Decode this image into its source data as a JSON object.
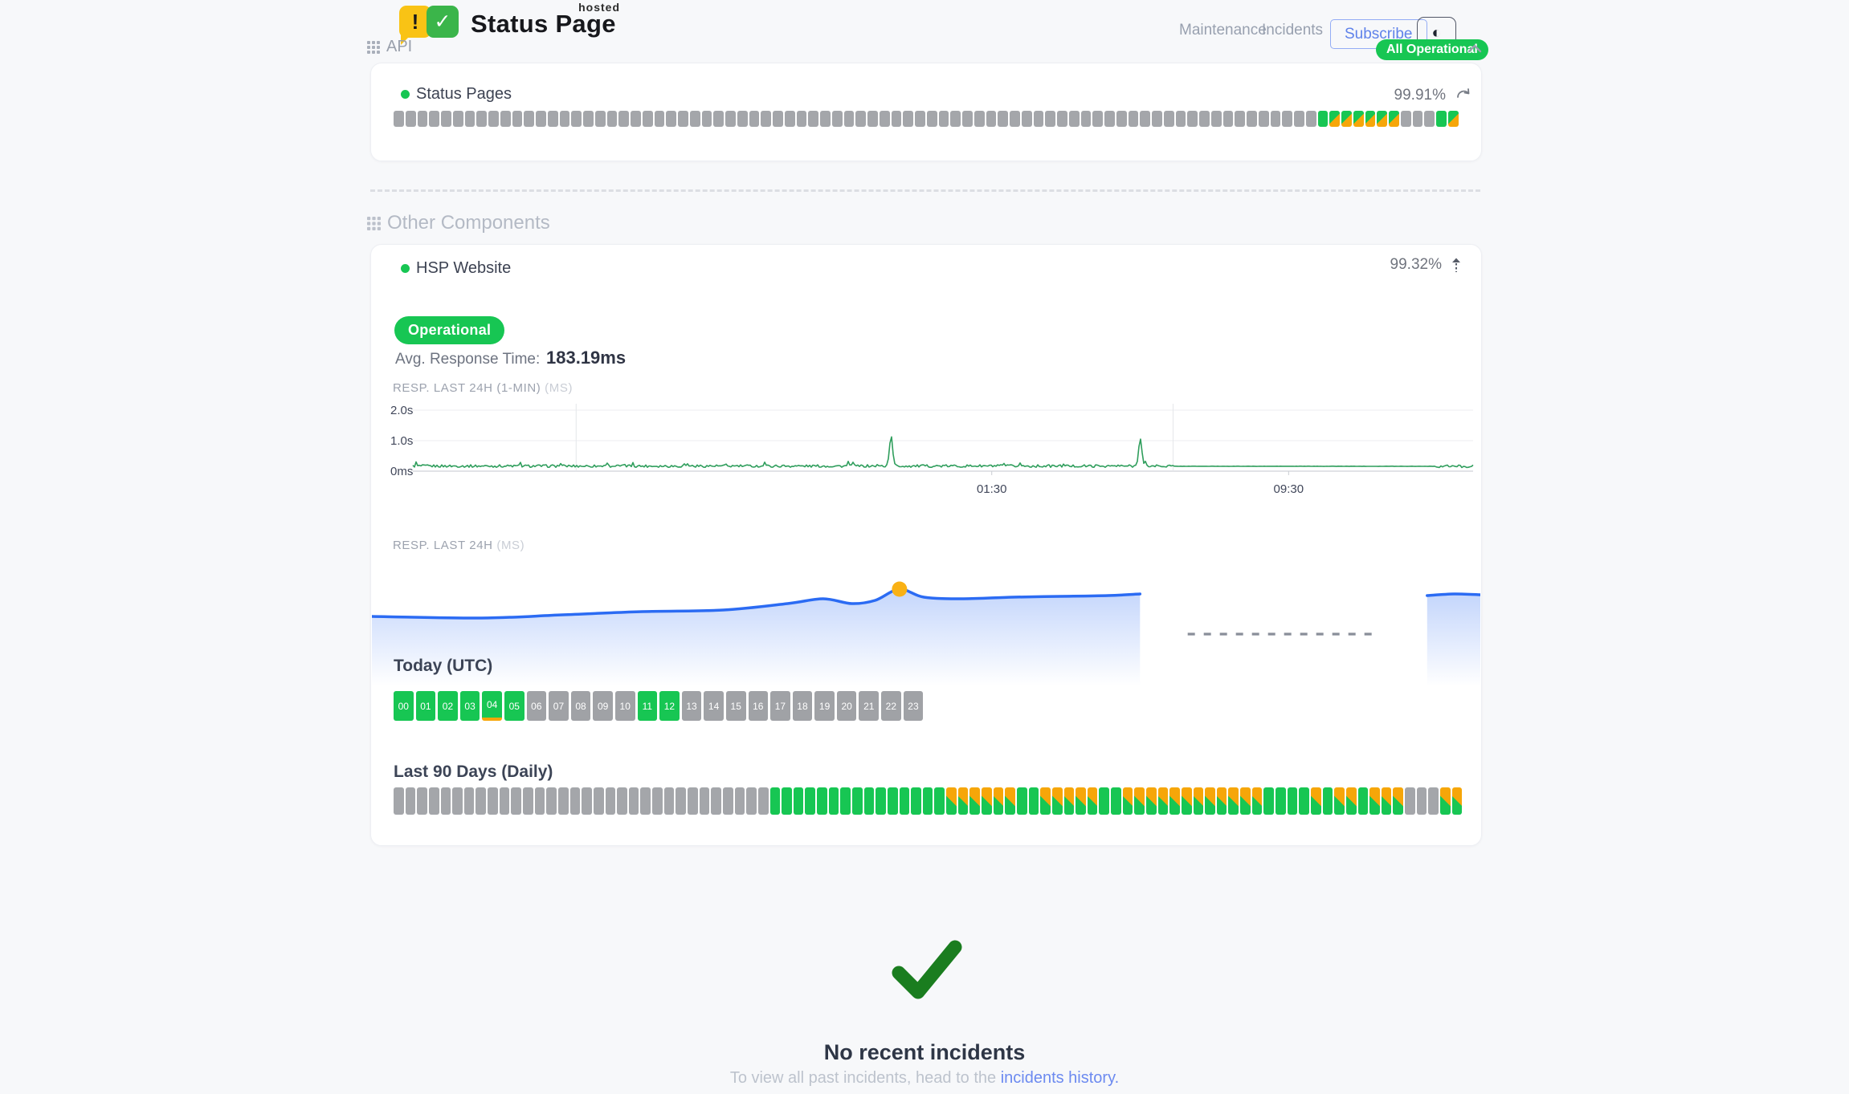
{
  "header": {
    "logo": {
      "title": "Status Page",
      "superscript": "hosted",
      "exclamation": "!",
      "check": "✓"
    },
    "nav": {
      "maintenance": "Maintenance",
      "incidents": "Incidents"
    },
    "subscribe_label": "Subscribe",
    "theme_icon": "◐",
    "status_badge": "All Operational"
  },
  "api_section": {
    "title": "API",
    "component": {
      "name": "Status Pages",
      "uptime": "99.91%"
    },
    "uptime_pattern": "xxxxxxxxxxxxxxxxxxxxxxxxxxxxxxxxxxxxxxxxxxxxxxxxxxxxxxxxxxxxxxxxxxxxxxxxxxxxxxgooooooxxxgo",
    "legend": {
      "g": "operational",
      "o": "degraded",
      "x": "no-data"
    }
  },
  "other_section": {
    "title": "Other Components",
    "component": {
      "name": "HSP Website",
      "uptime": "99.32%",
      "status": "Operational",
      "avg_label": "Avg. Response Time:",
      "avg_value": "183.19ms"
    }
  },
  "chart_data": [
    {
      "id": "resp_1min",
      "type": "line",
      "title": "RESP. LAST 24H (1-MIN)",
      "unit": "(MS)",
      "color": "#2F9E5C",
      "y_ticks": [
        {
          "label": "2.0s",
          "ms": 2000
        },
        {
          "label": "1.0s",
          "ms": 1000
        },
        {
          "label": "0ms",
          "ms": 0
        }
      ],
      "x_ticks": [
        {
          "label": "01:30",
          "pos": 0.546
        },
        {
          "label": "09:30",
          "pos": 0.826
        }
      ],
      "v_gridlines": [
        0.154,
        0.717
      ],
      "ylim_ms": [
        0,
        2000
      ],
      "baseline_ms": 170,
      "noise_ms": 85,
      "spikes": [
        {
          "pos": 0.451,
          "peak_ms": 1150
        },
        {
          "pos": 0.686,
          "peak_ms": 1080
        }
      ],
      "flat_from": 0.717,
      "flat_ms": 160
    },
    {
      "id": "resp_24h",
      "type": "area",
      "title": "RESP. LAST 24H",
      "unit": "(MS)",
      "color": "#2B6BF3",
      "marker_color": "#F9B115",
      "points": [
        [
          0,
          68
        ],
        [
          0.099,
          70
        ],
        [
          0.172,
          66
        ],
        [
          0.244,
          62
        ],
        [
          0.317,
          60
        ],
        [
          0.375,
          52
        ],
        [
          0.407,
          46
        ],
        [
          0.433,
          52
        ],
        [
          0.454,
          48
        ],
        [
          0.476,
          34
        ],
        [
          0.498,
          44
        ],
        [
          0.534,
          46
        ],
        [
          0.578,
          44
        ],
        [
          0.621,
          43
        ],
        [
          0.664,
          42
        ],
        [
          0.693,
          40
        ]
      ],
      "marker": [
        0.476,
        34
      ],
      "gap_dash": {
        "from": 0.736,
        "to": 0.906,
        "y": 90
      },
      "segment2": [
        [
          0.952,
          42
        ],
        [
          0.976,
          40
        ],
        [
          1,
          41
        ]
      ]
    },
    {
      "id": "today",
      "type": "heatmap",
      "title": "Today (UTC)",
      "highlight_hour": "04",
      "hours": [
        {
          "label": "00",
          "status": "g"
        },
        {
          "label": "01",
          "status": "g"
        },
        {
          "label": "02",
          "status": "g"
        },
        {
          "label": "03",
          "status": "g"
        },
        {
          "label": "04",
          "status": "g"
        },
        {
          "label": "05",
          "status": "g"
        },
        {
          "label": "06",
          "status": "x"
        },
        {
          "label": "07",
          "status": "x"
        },
        {
          "label": "08",
          "status": "x"
        },
        {
          "label": "09",
          "status": "x"
        },
        {
          "label": "10",
          "status": "x"
        },
        {
          "label": "11",
          "status": "g"
        },
        {
          "label": "12",
          "status": "g"
        },
        {
          "label": "13",
          "status": "x"
        },
        {
          "label": "14",
          "status": "x"
        },
        {
          "label": "15",
          "status": "x"
        },
        {
          "label": "16",
          "status": "x"
        },
        {
          "label": "17",
          "status": "x"
        },
        {
          "label": "18",
          "status": "x"
        },
        {
          "label": "19",
          "status": "x"
        },
        {
          "label": "20",
          "status": "x"
        },
        {
          "label": "21",
          "status": "x"
        },
        {
          "label": "22",
          "status": "x"
        },
        {
          "label": "23",
          "status": "x"
        }
      ]
    },
    {
      "id": "last90",
      "type": "heatmap",
      "title": "Last 90 Days (Daily)",
      "pattern": "xxxxxxxxxxxxxxxxxxxxxxxxxxxxxxxxgggggggggggggggooooooggoooooggooooooooooooggggogoogoooxxxoo"
    }
  ],
  "footer": {
    "title": "No recent incidents",
    "subtitle_prefix": "To view all past incidents, head to the ",
    "link_text": "incidents history."
  },
  "colors": {
    "green": "#17C653",
    "orange": "#F6A609",
    "gray_bar": "#A4A6AA",
    "blue": "#2B6BF3",
    "link": "#6C8AF0",
    "check_green": "#1A7D1F"
  }
}
